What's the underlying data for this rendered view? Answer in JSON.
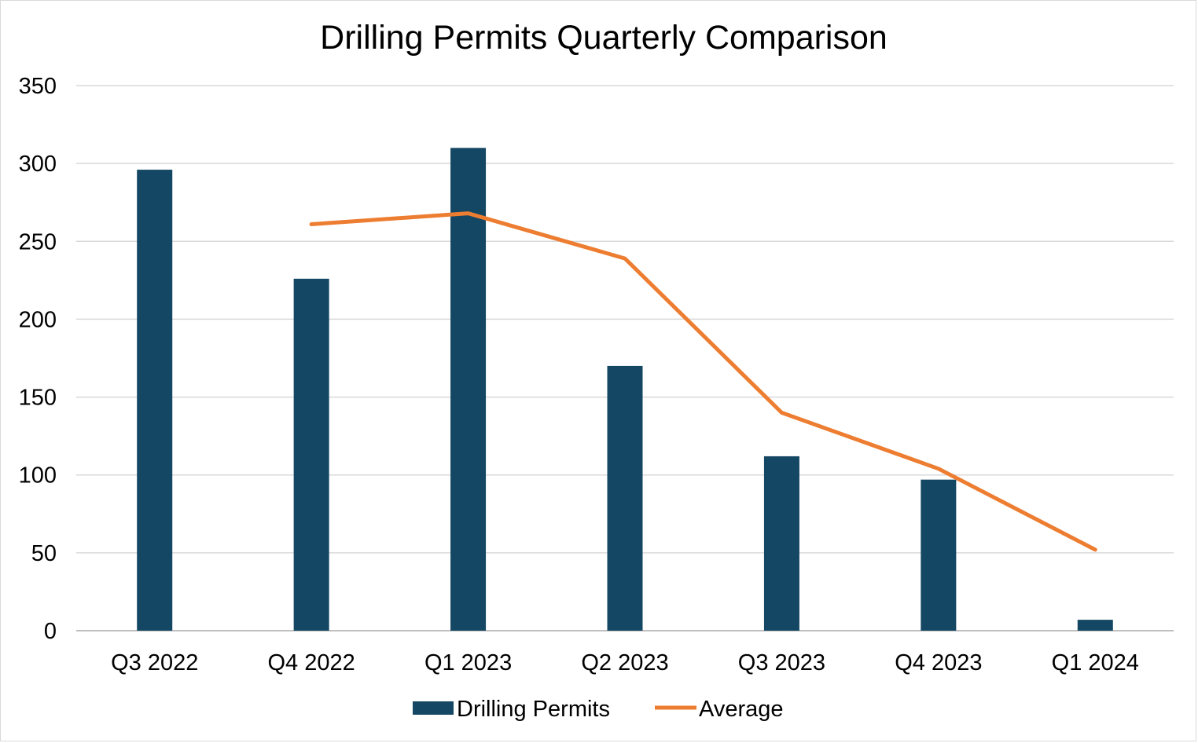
{
  "chart_data": {
    "type": "bar",
    "title": "Drilling Permits Quarterly Comparison",
    "xlabel": "",
    "ylabel": "",
    "categories": [
      "Q3 2022",
      "Q4 2022",
      "Q1 2023",
      "Q2 2023",
      "Q3 2023",
      "Q4 2023",
      "Q1 2024"
    ],
    "ylim": [
      0,
      350
    ],
    "yticks": [
      0,
      50,
      100,
      150,
      200,
      250,
      300,
      350
    ],
    "grid": true,
    "legend_position": "bottom",
    "series": [
      {
        "name": "Drilling Permits",
        "type": "bar",
        "color": "#134763",
        "values": [
          296,
          226,
          310,
          170,
          112,
          97,
          7
        ]
      },
      {
        "name": "Average",
        "type": "line",
        "color": "#ED7D31",
        "values": [
          null,
          261,
          268,
          239,
          140,
          104,
          52
        ]
      }
    ]
  }
}
